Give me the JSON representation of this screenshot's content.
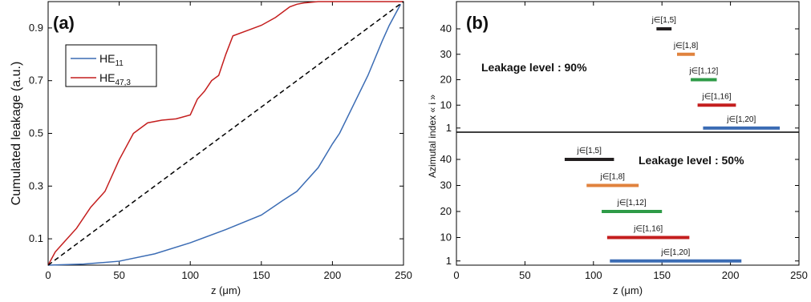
{
  "chart_data": [
    {
      "type": "line",
      "panel_label": "(a)",
      "xlabel": "z (μm)",
      "xlabel_parts": [
        "z (",
        "μ",
        "m)"
      ],
      "ylabel": "Cumulated leakage  (a.u.)",
      "xlim": [
        0,
        250
      ],
      "ylim": [
        0,
        1
      ],
      "xticks": [
        0,
        50,
        100,
        150,
        200,
        250
      ],
      "yticks": [
        0.1,
        0.3,
        0.5,
        0.7,
        0.9
      ],
      "grid": false,
      "legend_position": "top-left",
      "series": [
        {
          "name": "HE11",
          "label_base": "HE",
          "label_sub": "11",
          "color": "#3b6cb4",
          "x": [
            0,
            25,
            50,
            75,
            100,
            125,
            150,
            165,
            175,
            180,
            190,
            200,
            205,
            215,
            225,
            235,
            240,
            245,
            248
          ],
          "y": [
            0,
            0.004,
            0.015,
            0.043,
            0.085,
            0.135,
            0.19,
            0.245,
            0.28,
            0.31,
            0.37,
            0.46,
            0.5,
            0.61,
            0.72,
            0.85,
            0.91,
            0.96,
            0.99
          ]
        },
        {
          "name": "HE47,3",
          "label_base": "HE",
          "label_sub": "47,3",
          "color": "#c41e1e",
          "x": [
            0,
            5,
            10,
            20,
            30,
            40,
            50,
            60,
            70,
            80,
            90,
            100,
            105,
            110,
            115,
            120,
            125,
            130,
            140,
            150,
            160,
            170,
            175,
            180,
            190,
            200,
            220,
            250
          ],
          "y": [
            0,
            0.05,
            0.08,
            0.14,
            0.22,
            0.28,
            0.4,
            0.5,
            0.54,
            0.55,
            0.555,
            0.57,
            0.63,
            0.66,
            0.7,
            0.72,
            0.8,
            0.87,
            0.89,
            0.91,
            0.94,
            0.98,
            0.99,
            0.995,
            1.0,
            1.0,
            1.0,
            1.0
          ]
        },
        {
          "style": "dashed",
          "color": "#000000",
          "x": [
            0,
            250
          ],
          "y": [
            0,
            1.0
          ]
        }
      ]
    },
    {
      "type": "range-bar",
      "panel_label": "(b)",
      "xlabel": "z (μm)",
      "xlabel_parts": [
        "z (",
        "μ",
        "m)"
      ],
      "ylabel": "Azimutal index « i »",
      "xlim": [
        0,
        250
      ],
      "xticks": [
        0,
        50,
        100,
        150,
        200,
        250
      ],
      "yticks": [
        1,
        10,
        20,
        30,
        40
      ],
      "grid": false,
      "sections": [
        {
          "annotation": "Leakage level : 90%",
          "bars": [
            {
              "label": "j∈[1,5]",
              "i": 40,
              "start": 146,
              "end": 157,
              "color": "#231f20"
            },
            {
              "label": "j∈[1,8]",
              "i": 30,
              "start": 161,
              "end": 174,
              "color": "#e0823d"
            },
            {
              "label": "j∈[1,12]",
              "i": 20,
              "start": 171,
              "end": 190,
              "color": "#2e9b47"
            },
            {
              "label": "j∈[1,16]",
              "i": 10,
              "start": 176,
              "end": 204,
              "color": "#c41e1e"
            },
            {
              "label": "j∈[1,20]",
              "i": 1,
              "start": 180,
              "end": 236,
              "color": "#3b6cb4"
            }
          ]
        },
        {
          "annotation": "Leakage level : 50%",
          "bars": [
            {
              "label": "j∈[1,5]",
              "i": 40,
              "start": 79,
              "end": 115,
              "color": "#231f20"
            },
            {
              "label": "j∈[1,8]",
              "i": 30,
              "start": 95,
              "end": 133,
              "color": "#e0823d"
            },
            {
              "label": "j∈[1,12]",
              "i": 20,
              "start": 106,
              "end": 150,
              "color": "#2e9b47"
            },
            {
              "label": "j∈[1,16]",
              "i": 10,
              "start": 110,
              "end": 170,
              "color": "#c41e1e"
            },
            {
              "label": "j∈[1,20]",
              "i": 1,
              "start": 112,
              "end": 208,
              "color": "#3b6cb4"
            }
          ]
        }
      ]
    }
  ]
}
